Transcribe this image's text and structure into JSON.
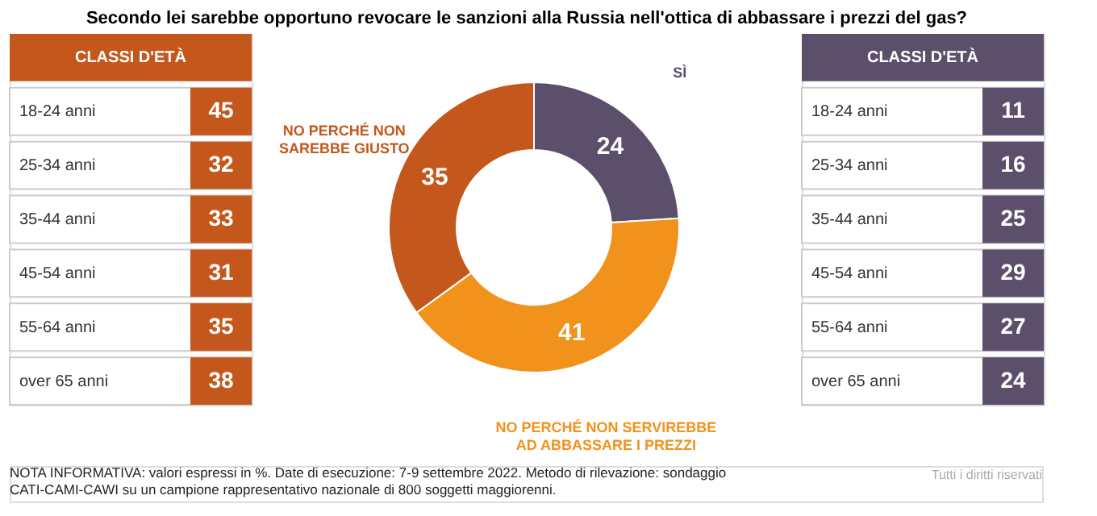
{
  "chart_data": [
    {
      "type": "other",
      "title": "CLASSI D'ETÀ",
      "categories": [
        "18-24 anni",
        "25-34 anni",
        "35-44 anni",
        "45-54 anni",
        "55-64 anni",
        "over 65 anni"
      ],
      "values": [
        45,
        32,
        33,
        31,
        35,
        38
      ],
      "color": "#c4581c",
      "data_labels": true
    },
    {
      "type": "donut",
      "title": "Secondo lei sarebbe opportuno revocare le sanzioni alla Russia nell'ottica di abbassare i prezzi del gas?",
      "categories": [
        "SÌ",
        "NO PERCHÉ NON SERVIREBBE AD ABBASSARE I PREZZI",
        "NO PERCHÉ NON SAREBBE GIUSTO"
      ],
      "values": [
        24,
        41,
        35
      ],
      "colors": [
        "#5b4f6b",
        "#f0921c",
        "#c4581c"
      ],
      "data_labels": true,
      "annotations": [
        "NOTA INFORMATIVA: valori espressi in %. Date di esecuzione: 7-9 settembre 2022. Metodo di rilevazione: sondaggio CATI-CAMI-CAWI su un campione rappresentativo nazionale di 800 soggetti maggiorenni.",
        "Tutti i diritti riservati"
      ]
    },
    {
      "type": "other",
      "title": "CLASSI D'ETÀ",
      "categories": [
        "18-24 anni",
        "25-34 anni",
        "35-44 anni",
        "45-54 anni",
        "55-64 anni",
        "over 65 anni"
      ],
      "values": [
        11,
        16,
        25,
        29,
        27,
        24
      ],
      "color": "#5b4f6b",
      "data_labels": true
    }
  ]
}
